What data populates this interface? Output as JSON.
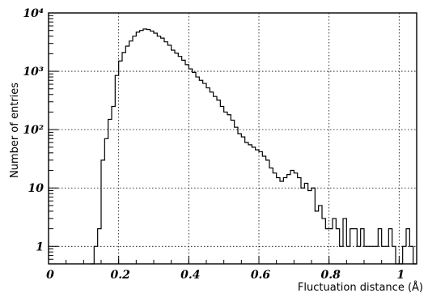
{
  "chart_data": {
    "type": "line",
    "xlabel": "Fluctuation distance (Å)",
    "ylabel": "Number of entries",
    "title": "",
    "xlim": [
      0,
      1.05
    ],
    "ylim": [
      0.5,
      10000
    ],
    "yscale": "log",
    "grid": true,
    "x_ticks": [
      "0",
      "0.2",
      "0.4",
      "0.6",
      "0.8",
      "1"
    ],
    "y_ticks": [
      {
        "value": 1,
        "label": "1"
      },
      {
        "value": 10,
        "label": "10"
      },
      {
        "value": 100,
        "label": "10²"
      },
      {
        "value": 1000,
        "label": "10³"
      },
      {
        "value": 10000,
        "label": "10⁴"
      }
    ],
    "series": [
      {
        "bin_width": 0.01,
        "x": [
          0.12,
          0.13,
          0.14,
          0.15,
          0.16,
          0.17,
          0.18,
          0.19,
          0.2,
          0.21,
          0.22,
          0.23,
          0.24,
          0.25,
          0.26,
          0.27,
          0.28,
          0.29,
          0.3,
          0.31,
          0.32,
          0.33,
          0.34,
          0.35,
          0.36,
          0.37,
          0.38,
          0.39,
          0.4,
          0.41,
          0.42,
          0.43,
          0.44,
          0.45,
          0.46,
          0.47,
          0.48,
          0.49,
          0.5,
          0.51,
          0.52,
          0.53,
          0.54,
          0.55,
          0.56,
          0.57,
          0.58,
          0.59,
          0.6,
          0.61,
          0.62,
          0.63,
          0.64,
          0.65,
          0.66,
          0.67,
          0.68,
          0.69,
          0.7,
          0.71,
          0.72,
          0.73,
          0.74,
          0.75,
          0.76,
          0.77,
          0.78,
          0.79,
          0.8,
          0.81,
          0.82,
          0.83,
          0.84,
          0.85,
          0.86,
          0.87,
          0.88,
          0.89,
          0.9,
          0.91,
          0.92,
          0.93,
          0.94,
          0.95,
          0.96,
          0.97,
          0.98,
          0.99,
          1.0,
          1.01,
          1.02,
          1.03,
          1.04
        ],
        "values": [
          0.5,
          1,
          2,
          30,
          70,
          150,
          250,
          850,
          1500,
          2100,
          2700,
          3300,
          4000,
          4700,
          5000,
          5300,
          5200,
          4900,
          4500,
          4000,
          3700,
          3200,
          2800,
          2300,
          2050,
          1800,
          1550,
          1300,
          1100,
          960,
          800,
          700,
          620,
          520,
          440,
          370,
          320,
          250,
          200,
          180,
          145,
          110,
          85,
          75,
          60,
          55,
          50,
          45,
          42,
          35,
          30,
          22,
          18,
          15,
          13,
          15,
          17,
          20,
          18,
          15,
          10,
          12,
          9,
          10,
          4,
          5,
          3,
          2,
          2,
          3,
          2,
          1,
          3,
          1,
          2,
          2,
          1,
          2,
          1,
          1,
          1,
          1,
          2,
          1,
          1,
          2,
          1,
          0.5,
          0.5,
          1,
          2,
          1,
          0.5
        ]
      }
    ]
  }
}
